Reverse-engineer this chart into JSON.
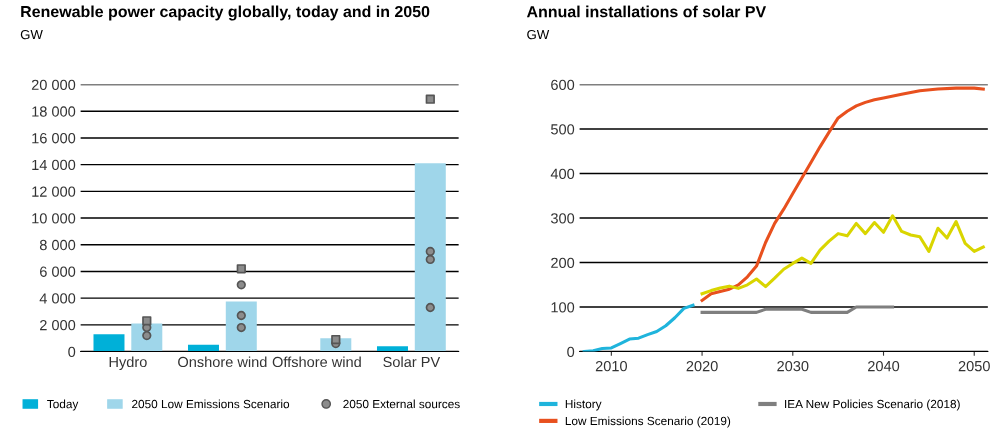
{
  "chart_data": [
    {
      "type": "bar",
      "title": "Renewable power capacity globally, today and in 2050",
      "ylabel": "GW",
      "categories": [
        "Hydro",
        "Onshore wind",
        "Offshore wind",
        "Solar PV"
      ],
      "series": [
        {
          "name": "Today",
          "type": "bar",
          "color": "#00b0d8",
          "values": [
            1300,
            500,
            null,
            400
          ]
        },
        {
          "name": "2050 Low Emissions Scenario",
          "type": "bar",
          "color": "#9fd6ea",
          "values": [
            2100,
            3750,
            1000,
            14100
          ]
        },
        {
          "name": "2050 External sources",
          "type": "scatter",
          "marker": "circle",
          "color": "#8c8c8c",
          "x": [
            "Hydro",
            "Hydro",
            "Onshore wind",
            "Onshore wind",
            "Onshore wind",
            "Offshore wind",
            "Solar PV",
            "Solar PV",
            "Solar PV"
          ],
          "values": [
            1800,
            1200,
            5000,
            2700,
            1800,
            600,
            7500,
            6900,
            3300
          ]
        },
        {
          "type": "scatter",
          "marker": "square",
          "color": "#8c8c8c",
          "x": [
            "Hydro",
            "Onshore wind",
            "Offshore wind",
            "Solar PV"
          ],
          "values": [
            2300,
            6200,
            900,
            18900
          ]
        }
      ],
      "ylim": [
        0,
        20000
      ],
      "yticks": [
        {
          "value": 0,
          "label": "0"
        },
        {
          "value": 2000,
          "label": "2 000"
        },
        {
          "value": 4000,
          "label": "4 000"
        },
        {
          "value": 6000,
          "label": "6 000"
        },
        {
          "value": 8000,
          "label": "8 000"
        },
        {
          "value": 10000,
          "label": "10 000"
        },
        {
          "value": 12000,
          "label": "12 000"
        },
        {
          "value": 14000,
          "label": "14 000"
        },
        {
          "value": 16000,
          "label": "16 000"
        },
        {
          "value": 18000,
          "label": "18 000"
        },
        {
          "value": 20000,
          "label": "20 000"
        }
      ],
      "grid": "y",
      "legend": "bottom"
    },
    {
      "type": "line",
      "title": "Annual installations of solar PV",
      "ylabel": "GW",
      "series": [
        {
          "name": "History",
          "color": "#1fb4dc",
          "x": [
            2007,
            2008,
            2009,
            2010,
            2011,
            2012,
            2013,
            2014,
            2015,
            2016,
            2017,
            2018,
            2019
          ],
          "values": [
            0,
            2,
            7,
            8,
            18,
            28,
            30,
            38,
            45,
            58,
            76,
            97,
            104
          ]
        },
        {
          "name": "Low Emissions Scenario (2019)",
          "color": "#e8501e",
          "x": [
            2020,
            2021,
            2022,
            2023,
            2024,
            2025,
            2026,
            2027,
            2028,
            2029,
            2030,
            2031,
            2032,
            2033,
            2034,
            2035,
            2036,
            2037,
            2038,
            2039,
            2040,
            2042,
            2044,
            2046,
            2048,
            2050,
            2051
          ],
          "values": [
            115,
            130,
            135,
            140,
            150,
            168,
            192,
            245,
            288,
            320,
            355,
            390,
            425,
            460,
            493,
            525,
            540,
            552,
            560,
            566,
            570,
            578,
            586,
            590,
            592,
            592,
            590
          ]
        },
        {
          "name": "IEA New Policies Scenario (2018)",
          "color": "#7f7f7f",
          "x": [
            2020,
            2026,
            2027,
            2031,
            2032,
            2036,
            2037,
            2041
          ],
          "values": [
            88,
            88,
            95,
            95,
            88,
            88,
            100,
            100
          ]
        },
        {
          "color": "#d9d500",
          "x": [
            2020,
            2021,
            2022,
            2023,
            2024,
            2025,
            2026,
            2027,
            2028,
            2029,
            2030,
            2031,
            2032,
            2033,
            2034,
            2035,
            2036,
            2037,
            2038,
            2039,
            2040,
            2041,
            2042,
            2043,
            2044,
            2045,
            2046,
            2047,
            2048,
            2049,
            2050,
            2051
          ],
          "values": [
            130,
            137,
            143,
            147,
            142,
            150,
            163,
            146,
            165,
            185,
            198,
            210,
            198,
            228,
            248,
            265,
            260,
            288,
            265,
            290,
            268,
            305,
            270,
            262,
            258,
            225,
            277,
            255,
            292,
            243,
            225,
            235
          ]
        }
      ],
      "xlim": [
        2006.5,
        2051.5
      ],
      "xticks": [
        2010,
        2020,
        2030,
        2040,
        2050
      ],
      "ylim": [
        0,
        600
      ],
      "yticks": [
        0,
        100,
        200,
        300,
        400,
        500,
        600
      ],
      "grid": "y",
      "legend": "bottom",
      "marker": "none",
      "line_style": "solid"
    }
  ]
}
